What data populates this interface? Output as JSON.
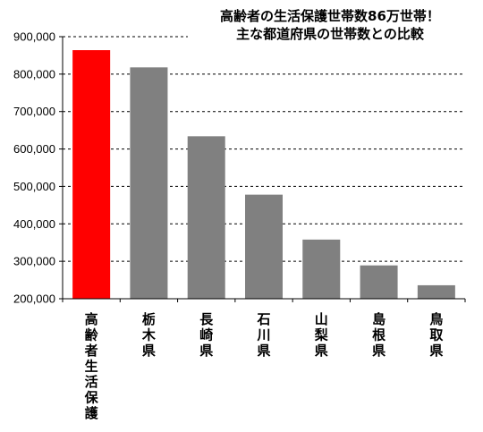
{
  "chart_data": {
    "type": "bar",
    "title_lines": [
      "高齢者の生活保護世帯数86万世帯！",
      "主な都道府県の世帯数との比較"
    ],
    "categories": [
      "高齢者生活保護",
      "栃木県",
      "長崎県",
      "石川県",
      "山梨県",
      "島根県",
      "鳥取県"
    ],
    "values": [
      864000,
      818000,
      634000,
      478000,
      358000,
      289000,
      236000
    ],
    "ylim": [
      200000,
      900000
    ],
    "yticks": [
      200000,
      300000,
      400000,
      500000,
      600000,
      700000,
      800000,
      900000
    ],
    "ytick_labels": [
      "200,000",
      "300,000",
      "400,000",
      "500,000",
      "600,000",
      "700,000",
      "800,000",
      "900,000"
    ],
    "xlabel": "",
    "ylabel": "",
    "grid": true,
    "grid_style": "dashed",
    "colors": {
      "highlight": "#ff0000",
      "bar": "#808080",
      "axis": "#000000",
      "grid": "#000000"
    },
    "highlight_index": 0
  }
}
